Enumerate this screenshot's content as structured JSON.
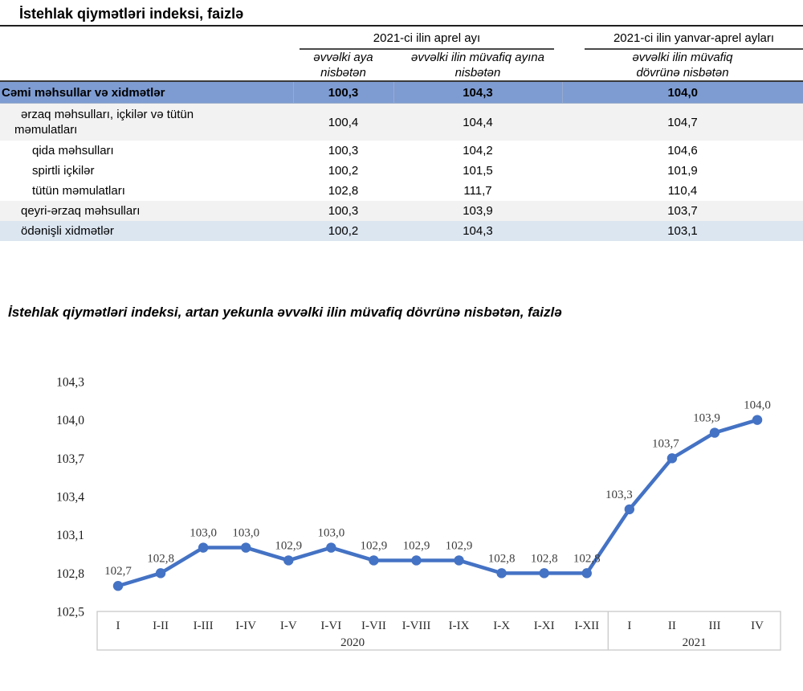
{
  "page": {
    "table_title": "İstehlak qiymətləri indeksi, faizlə",
    "chart_title": "İstehlak qiymətləri indeksi, artan yekunla əvvəlki ilin müvafiq dövrünə nisbətən, faizlə"
  },
  "table": {
    "col_groups": [
      {
        "label": "2021-ci ilin aprel ayı",
        "span": 2
      },
      {
        "label": "2021-ci ilin yanvar-aprel ayları",
        "span": 1
      }
    ],
    "sub_headers": [
      "əvvəlki aya nisbətən",
      "əvvəlki ilin müvafiq ayına nisbətən",
      "əvvəlki ilin müvafiq dövrünə nisbətən"
    ],
    "rows": [
      {
        "label": "Cəmi məhsullar və xidmətlər",
        "values": [
          "100,3",
          "104,3",
          "104,0"
        ],
        "style": "total",
        "indent": 0
      },
      {
        "label": "ərzaq məhsulları, içkilər və tütün məmulatları",
        "values": [
          "100,4",
          "104,4",
          "104,7"
        ],
        "style": "stripe",
        "indent": 1
      },
      {
        "label": "qida məhsulları",
        "values": [
          "100,3",
          "104,2",
          "104,6"
        ],
        "style": "plain",
        "indent": 2
      },
      {
        "label": "spirtli içkilər",
        "values": [
          "100,2",
          "101,5",
          "101,9"
        ],
        "style": "plain",
        "indent": 2
      },
      {
        "label": "tütün məmulatları",
        "values": [
          "102,8",
          "111,7",
          "110,4"
        ],
        "style": "plain",
        "indent": 2
      },
      {
        "label": "qeyri-ərzaq məhsulları",
        "values": [
          "100,3",
          "103,9",
          "103,7"
        ],
        "style": "stripe",
        "indent": 1
      },
      {
        "label": "ödənişli xidmətlər",
        "values": [
          "100,2",
          "104,3",
          "103,1"
        ],
        "style": "service",
        "indent": 1
      }
    ]
  },
  "chart_data": {
    "type": "line",
    "title": "İstehlak qiymətləri indeksi, artan yekunla əvvəlki ilin müvafiq dövrünə nisbətən, faizlə",
    "xlabel": "",
    "ylabel": "",
    "categories": [
      "I",
      "I-II",
      "I-III",
      "I-IV",
      "I-V",
      "I-VI",
      "I-VII",
      "I-VIII",
      "I-IX",
      "I-X",
      "I-XI",
      "I-XII",
      "I",
      "II",
      "III",
      "IV"
    ],
    "values": [
      102.7,
      102.8,
      103.0,
      103.0,
      102.9,
      103.0,
      102.9,
      102.9,
      102.9,
      102.8,
      102.8,
      102.8,
      103.3,
      103.7,
      103.9,
      104.0
    ],
    "point_labels": [
      "102,7",
      "102,8",
      "103,0",
      "103,0",
      "102,9",
      "103,0",
      "102,9",
      "102,9",
      "102,9",
      "102,8",
      "102,8",
      "102,8",
      "103,3",
      "103,7",
      "103,9",
      "104,0"
    ],
    "x_groups": [
      {
        "year": "2020",
        "labels": [
          "I",
          "I-II",
          "I-III",
          "I-IV",
          "I-V",
          "I-VI",
          "I-VII",
          "I-VIII",
          "I-IX",
          "I-X",
          "I-XI",
          "I-XII"
        ]
      },
      {
        "year": "2021",
        "labels": [
          "I",
          "II",
          "III",
          "IV"
        ]
      }
    ],
    "y_ticks": [
      "104,3",
      "104,0",
      "103,7",
      "103,4",
      "103,1",
      "102,8",
      "102,5"
    ],
    "ylim": [
      102.5,
      104.3
    ],
    "grid": false,
    "legend": false,
    "marker": "circle",
    "line_color": "#4472C4"
  },
  "colors": {
    "line": "#4472C4",
    "total_row_bg": "#7E9CD2",
    "stripe_row_bg": "#F2F2F2",
    "service_row_bg": "#DCE6F1",
    "axis_box_stroke": "#C9C9C9",
    "label_text": "#3D3D3D"
  }
}
